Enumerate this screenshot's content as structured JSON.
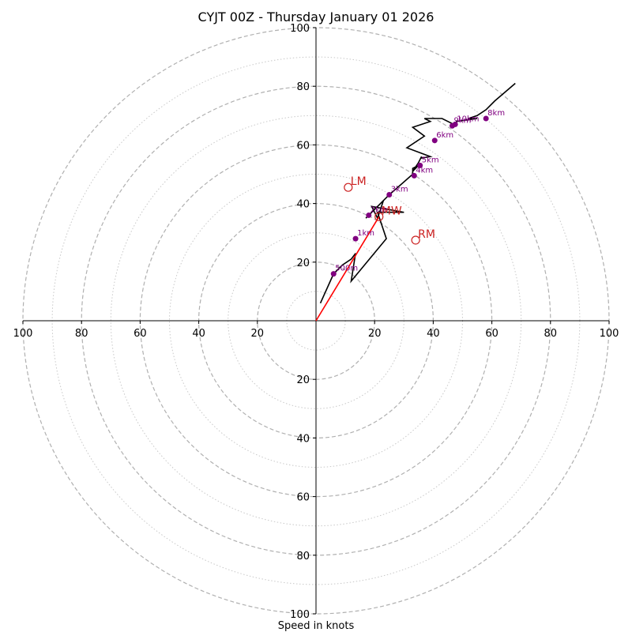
{
  "chart_data": {
    "type": "hodograph",
    "title": "CYJT 00Z - Thursday January 01 2026",
    "xlabel": "Speed in knots",
    "speed_max": 100,
    "ring_speeds_dashed": [
      20,
      40,
      60,
      80,
      100
    ],
    "ring_speeds_dotted": [
      10,
      30,
      50,
      70,
      90
    ],
    "x_tick_labels": [
      "100",
      "80",
      "60",
      "40",
      "20",
      "20",
      "40",
      "60",
      "80",
      "100"
    ],
    "x_tick_values": [
      -100,
      -80,
      -60,
      -40,
      -20,
      20,
      40,
      60,
      80,
      100
    ],
    "y_tick_labels": [
      "100",
      "80",
      "60",
      "40",
      "20",
      "20",
      "40",
      "60",
      "80",
      "100"
    ],
    "y_tick_values": [
      100,
      80,
      60,
      40,
      20,
      -20,
      -40,
      -60,
      -80,
      -100
    ],
    "colors": {
      "hodograph_line": "#000000",
      "height_marker": "#800080",
      "motion": "#cc2222",
      "shear_vector": "#ff0000",
      "grid_dashed": "#b0b0b0",
      "grid_dotted": "#c8c8c8"
    },
    "hodograph_u": [
      1.5,
      6,
      9,
      12,
      13.5,
      12,
      24,
      21,
      30,
      19,
      21,
      23,
      17,
      25,
      33,
      33,
      35,
      33,
      35,
      36,
      36,
      39,
      31,
      37,
      33,
      39,
      37,
      43,
      47,
      48,
      55,
      52,
      55,
      58,
      61,
      68
    ],
    "hodograph_v": [
      6,
      16,
      19,
      21,
      23,
      13.5,
      28,
      37,
      37,
      39,
      35,
      41,
      35,
      43,
      50,
      52,
      53,
      51,
      54,
      56,
      55.5,
      56,
      59,
      63,
      66,
      68,
      69,
      69,
      67,
      68,
      69,
      69,
      70,
      72,
      75,
      81
    ],
    "height_markers": [
      {
        "label": "500m",
        "u": 6,
        "v": 16
      },
      {
        "label": "1km",
        "u": 13.5,
        "v": 28
      },
      {
        "label": "2km",
        "u": 18,
        "v": 36
      },
      {
        "label": "3km",
        "u": 25,
        "v": 43
      },
      {
        "label": "4km",
        "u": 33.5,
        "v": 49.5
      },
      {
        "label": "5km",
        "u": 35.5,
        "v": 53
      },
      {
        "label": "6km",
        "u": 40.5,
        "v": 61.5
      },
      {
        "label": "9km",
        "u": 46.5,
        "v": 66.5
      },
      {
        "label": "10km",
        "u": 47.5,
        "v": 67
      },
      {
        "label": "8km",
        "u": 58,
        "v": 69
      }
    ],
    "storm_motions": [
      {
        "label": "LM",
        "u": 11,
        "v": 45.5
      },
      {
        "label": "MW",
        "u": 21.5,
        "v": 35.5
      },
      {
        "label": "RM",
        "u": 34,
        "v": 27.5
      }
    ],
    "shear_vector": {
      "u0": 0,
      "v0": 0,
      "u1": 21.5,
      "v1": 35.5
    }
  }
}
